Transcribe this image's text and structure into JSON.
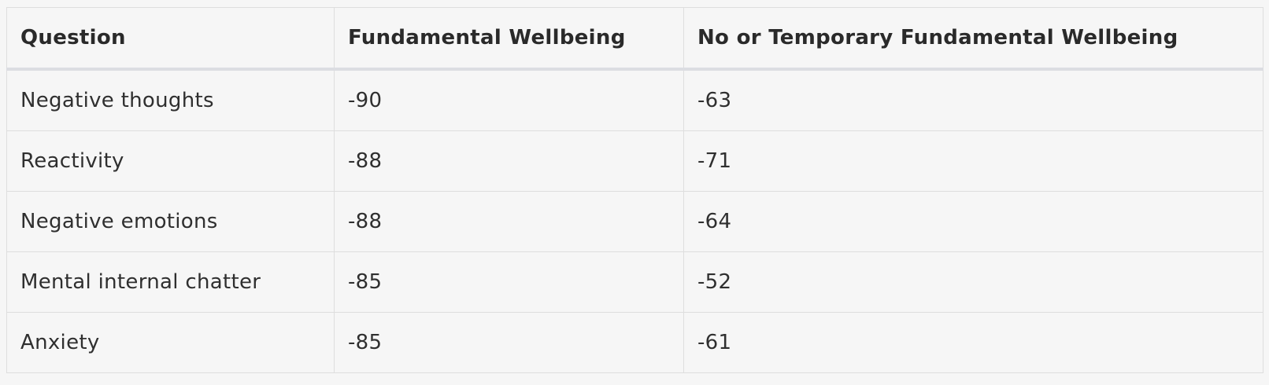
{
  "table": {
    "headers": [
      "Question",
      "Fundamental Wellbeing",
      "No or Temporary Fundamental Wellbeing"
    ],
    "rows": [
      [
        "Negative thoughts",
        "-90",
        "-63"
      ],
      [
        "Reactivity",
        "-88",
        "-71"
      ],
      [
        "Negative emotions",
        "-88",
        "-64"
      ],
      [
        "Mental internal chatter",
        "-85",
        "-52"
      ],
      [
        "Anxiety",
        "-85",
        "-61"
      ]
    ]
  },
  "colors": {
    "background": "#f6f6f6",
    "border": "#dedede",
    "text": "#2b2b2b"
  }
}
